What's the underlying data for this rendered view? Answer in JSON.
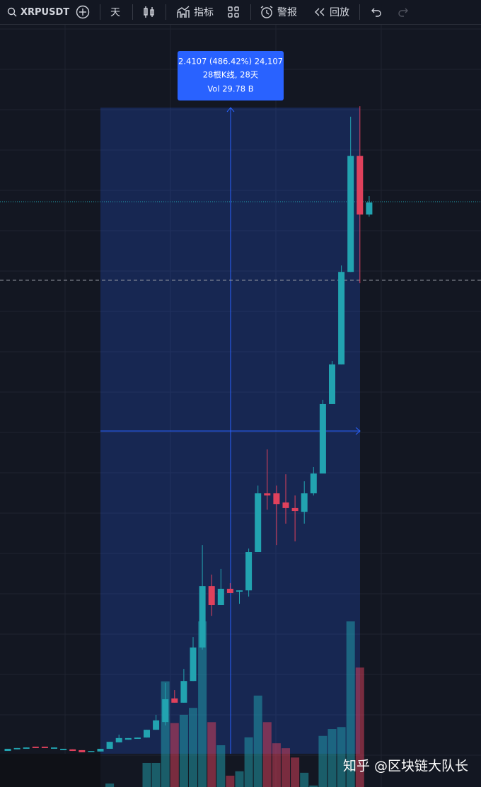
{
  "toolbar": {
    "symbol": "XRPUSDT",
    "interval": "天",
    "indicators": "指标",
    "alerts": "警报",
    "replay": "回放"
  },
  "measure": {
    "lines": [
      "2.4107 (486.42%) 24,107",
      "28根K线, 28天",
      "Vol 29.78 B"
    ]
  },
  "watermark": "知乎 @区块链大队长",
  "chart_data": {
    "type": "candlestick",
    "ylim": [
      0.3715,
      3.215
    ],
    "volume_lim": [
      0,
      3.6
    ],
    "up_color": "#22a3b0",
    "down_color": "#e0415c",
    "open": [
      0.506,
      0.512,
      0.514,
      0.522,
      0.522,
      0.514,
      0.509,
      0.512,
      0.509,
      0.504,
      0.504,
      0.514,
      0.538,
      0.548,
      0.551,
      0.556,
      0.585,
      0.614,
      0.702,
      0.686,
      0.767,
      0.892,
      1.121,
      1.05,
      1.111,
      1.1,
      1.105,
      1.248,
      1.467,
      1.467,
      1.433,
      1.412,
      1.398,
      1.467,
      1.541,
      1.8,
      1.948,
      2.293,
      2.726,
      2.507
    ],
    "high": [
      0.514,
      0.517,
      0.519,
      0.522,
      0.522,
      0.519,
      0.514,
      0.512,
      0.509,
      0.506,
      0.514,
      0.54,
      0.567,
      0.554,
      0.556,
      0.585,
      0.641,
      0.76,
      0.733,
      0.812,
      0.931,
      1.274,
      1.164,
      1.185,
      1.132,
      1.105,
      1.261,
      1.496,
      1.631,
      1.496,
      1.538,
      1.459,
      1.512,
      1.565,
      1.816,
      1.961,
      2.317,
      2.872,
      2.911,
      2.576
    ],
    "low": [
      0.506,
      0.512,
      0.514,
      0.517,
      0.517,
      0.514,
      0.509,
      0.506,
      0.501,
      0.504,
      0.504,
      0.514,
      0.538,
      0.548,
      0.551,
      0.556,
      0.585,
      0.601,
      0.686,
      0.686,
      0.767,
      0.884,
      1.01,
      1.05,
      1.095,
      1.055,
      1.082,
      1.248,
      1.406,
      1.274,
      1.354,
      1.288,
      1.354,
      1.459,
      1.541,
      1.8,
      1.948,
      2.293,
      2.251,
      2.499
    ],
    "close": [
      0.514,
      0.517,
      0.519,
      0.517,
      0.517,
      0.519,
      0.514,
      0.506,
      0.501,
      0.506,
      0.514,
      0.54,
      0.554,
      0.554,
      0.556,
      0.585,
      0.62,
      0.699,
      0.686,
      0.767,
      0.892,
      1.121,
      1.05,
      1.111,
      1.095,
      1.105,
      1.248,
      1.467,
      1.459,
      1.427,
      1.412,
      1.401,
      1.467,
      1.541,
      1.8,
      1.948,
      2.293,
      2.726,
      2.507,
      2.552
    ],
    "volume": [
      null,
      null,
      null,
      null,
      null,
      null,
      null,
      null,
      null,
      null,
      null,
      0.07,
      null,
      null,
      null,
      0.49,
      0.49,
      2.15,
      1.3,
      1.47,
      1.61,
      3.37,
      1.32,
      0.85,
      0.23,
      0.32,
      1.01,
      1.86,
      1.32,
      0.89,
      0.79,
      0.6,
      0.29,
      0.03,
      1.04,
      1.18,
      1.22,
      3.37,
      2.43,
      null
    ]
  }
}
